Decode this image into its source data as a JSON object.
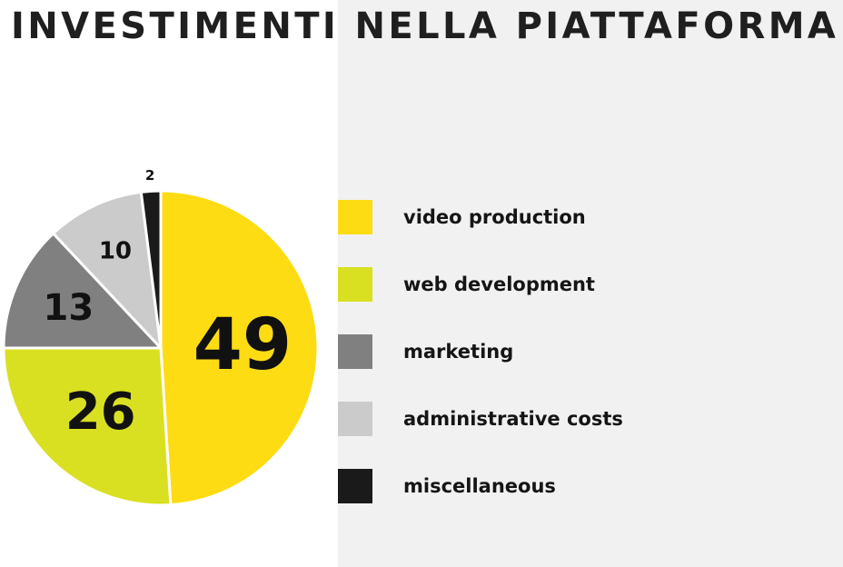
{
  "chart_data": {
    "type": "pie",
    "title": "INVESTIMENTI NELLA PIATTAFORMA",
    "legend_position": "right",
    "slices": [
      {
        "label": "video production",
        "value": 49,
        "color": "#fddc14"
      },
      {
        "label": "web development",
        "value": 26,
        "color": "#d9e021"
      },
      {
        "label": "marketing",
        "value": 13,
        "color": "#808080"
      },
      {
        "label": "administrative costs",
        "value": 10,
        "color": "#cbcbcb"
      },
      {
        "label": "miscellaneous",
        "value": 2,
        "color": "#1a1a1a"
      }
    ]
  }
}
